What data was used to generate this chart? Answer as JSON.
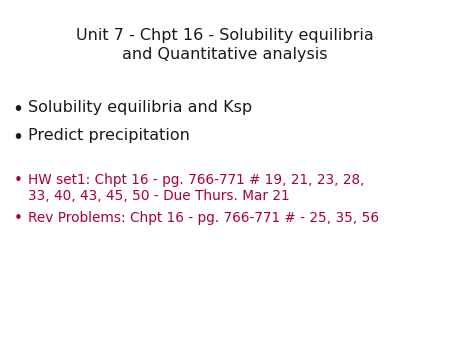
{
  "background_color": "#ffffff",
  "title_line1": "Unit 7 - Chpt 16 - Solubility equilibria",
  "title_line2": "and Quantitative analysis",
  "title_color": "#1a1a1a",
  "title_fontsize": 11.5,
  "bullet_items_black": [
    "Solubility equilibria and Ksp",
    "Predict precipitation"
  ],
  "black_color": "#1a1a1a",
  "red_color": "#aa003a",
  "black_fontsize": 11.5,
  "red_fontsize": 9.8,
  "bullet_char": "•",
  "hw_line1": "HW set1: Chpt 16 - pg. 766-771 # 19, 21, 23, 28,",
  "hw_line2": "33, 40, 43, 45, 50 - Due Thurs. Mar 21",
  "rev_line": "Rev Problems: Chpt 16 - pg. 766-771 # - 25, 35, 56"
}
